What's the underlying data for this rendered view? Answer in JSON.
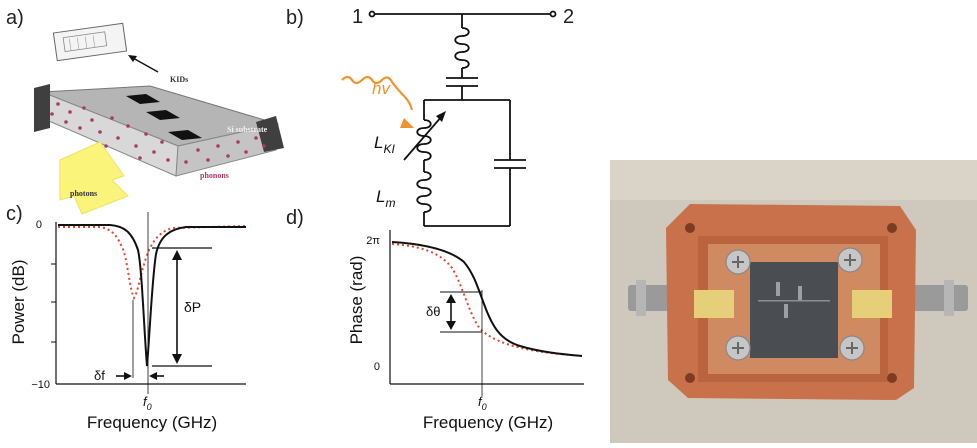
{
  "panels": {
    "a": {
      "label": "a)",
      "kids_label": "KIDs",
      "substrate_label": "Si substrate",
      "photons_label": "photons",
      "phonons_label": "phonons"
    },
    "b": {
      "label": "b)",
      "port1": "1",
      "port2": "2",
      "hv": "hv",
      "lki_main": "L",
      "lki_sub": "KI",
      "lm_main": "L",
      "lm_sub": "m"
    },
    "c": {
      "label": "c)",
      "ylabel": "Power (dB)",
      "xlabel": "Frequency (GHz)",
      "ytick_top": "0",
      "ytick_bottom": "−10",
      "dp": "δP",
      "df": "δf",
      "f0_main": "f",
      "f0_sub": "0"
    },
    "d": {
      "label": "d)",
      "ylabel": "Phase (rad)",
      "xlabel": "Frequency (GHz)",
      "ytick_top": "2π",
      "ytick_bottom": "0",
      "dtheta": "δθ",
      "f0_main": "f",
      "f0_sub": "0"
    }
  },
  "colors": {
    "measured": "#111111",
    "shifted": "#e2452b",
    "orange": "#f0922e",
    "copper": "#c8714a",
    "yellow": "#fbf47a"
  }
}
